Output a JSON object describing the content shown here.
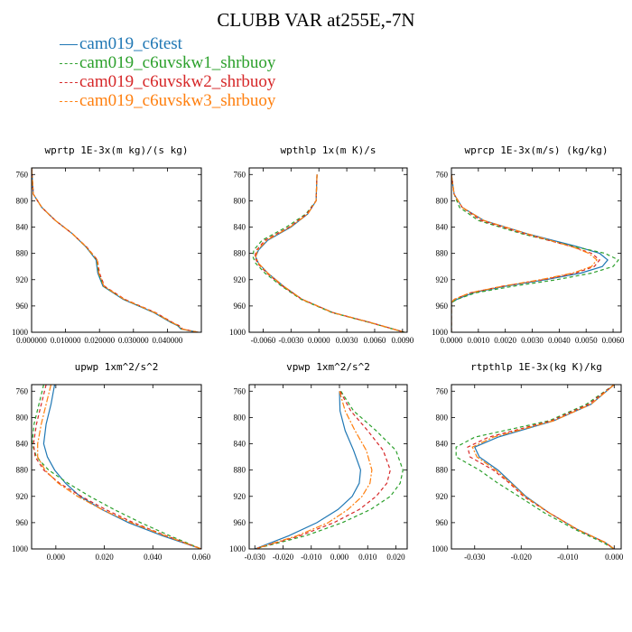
{
  "title": "CLUBB VAR at255E,-7N",
  "legend": [
    {
      "name": "cam019_c6test",
      "color": "#1f77b4",
      "dash": "solid"
    },
    {
      "name": "cam019_c6uvskw1_shrbuoy",
      "color": "#2ca02c",
      "dash": "dashed"
    },
    {
      "name": "cam019_c6uvskw2_shrbuoy",
      "color": "#d62728",
      "dash": "dashed"
    },
    {
      "name": "cam019_c6uvskw3_shrbuoy",
      "color": "#ff7f0e",
      "dash": "dashdot"
    }
  ],
  "chart_data": [
    {
      "type": "line",
      "title": "wprtp  1E-3x(m kg)/(s kg)",
      "xlim": [
        0,
        0.05
      ],
      "ylim": [
        1000,
        750
      ],
      "xticks": [
        0,
        0.01,
        0.02,
        0.03,
        0.04
      ],
      "xtick_labels": [
        "0.000000",
        "0.010000",
        "0.020000",
        "0.030000",
        "0.040000"
      ],
      "yticks": [
        760,
        800,
        840,
        880,
        920,
        960,
        1000
      ],
      "y": [
        750,
        790,
        810,
        830,
        850,
        870,
        890,
        910,
        930,
        950,
        970,
        985,
        990,
        995,
        1000
      ],
      "series": [
        {
          "name": "cam019_c6test",
          "values": [
            0,
            0.0005,
            0.003,
            0.007,
            0.012,
            0.016,
            0.019,
            0.0195,
            0.021,
            0.027,
            0.036,
            0.041,
            0.043,
            0.044,
            0.049
          ]
        },
        {
          "name": "cam019_c6uvskw1_shrbuoy",
          "values": [
            0,
            0.0005,
            0.003,
            0.007,
            0.012,
            0.016,
            0.0192,
            0.0197,
            0.0212,
            0.0272,
            0.0362,
            0.0412,
            0.0432,
            0.0442,
            0.049
          ]
        },
        {
          "name": "cam019_c6uvskw2_shrbuoy",
          "values": [
            0,
            0.0005,
            0.003,
            0.007,
            0.012,
            0.0162,
            0.0194,
            0.02,
            0.0215,
            0.0275,
            0.0365,
            0.0415,
            0.0435,
            0.0445,
            0.049
          ]
        },
        {
          "name": "cam019_c6uvskw3_shrbuoy",
          "values": [
            0,
            0.0005,
            0.003,
            0.007,
            0.012,
            0.0161,
            0.0193,
            0.0198,
            0.0213,
            0.0273,
            0.0363,
            0.0413,
            0.0433,
            0.0443,
            0.049
          ]
        }
      ]
    },
    {
      "type": "line",
      "title": "wpthlp  1x(m K)/s",
      "xlim": [
        -0.0075,
        0.0095
      ],
      "ylim": [
        1000,
        750
      ],
      "xticks": [
        -0.006,
        -0.003,
        0,
        0.003,
        0.006,
        0.009
      ],
      "xtick_labels": [
        "-0.0060",
        "-0.0030",
        "0.0000",
        "0.0030",
        "0.0060",
        "0.0090"
      ],
      "yticks": [
        760,
        800,
        840,
        880,
        920,
        960,
        1000
      ],
      "y": [
        760,
        800,
        820,
        840,
        860,
        875,
        885,
        895,
        910,
        930,
        950,
        970,
        985,
        1000
      ],
      "series": [
        {
          "name": "cam019_c6test",
          "values": [
            -0.0002,
            -0.0003,
            -0.0012,
            -0.003,
            -0.0055,
            -0.0065,
            -0.0068,
            -0.0065,
            -0.0055,
            -0.0038,
            -0.0018,
            0.0015,
            0.0055,
            0.0092
          ]
        },
        {
          "name": "cam019_c6uvskw1_shrbuoy",
          "values": [
            -0.0002,
            -0.0003,
            -0.0014,
            -0.0035,
            -0.0061,
            -0.007,
            -0.0071,
            -0.0068,
            -0.0058,
            -0.004,
            -0.0019,
            0.0014,
            0.0054,
            0.0092
          ]
        },
        {
          "name": "cam019_c6uvskw2_shrbuoy",
          "values": [
            -0.0002,
            -0.0003,
            -0.0013,
            -0.0032,
            -0.0058,
            -0.0067,
            -0.0069,
            -0.0066,
            -0.0056,
            -0.0039,
            -0.0018,
            0.0015,
            0.0055,
            0.0092
          ]
        },
        {
          "name": "cam019_c6uvskw3_shrbuoy",
          "values": [
            -0.0002,
            -0.0003,
            -0.0012,
            -0.0031,
            -0.0056,
            -0.0066,
            -0.0068,
            -0.0065,
            -0.0055,
            -0.0038,
            -0.0018,
            0.0015,
            0.0055,
            0.0092
          ]
        }
      ]
    },
    {
      "type": "line",
      "title": "wprcp  1E-3x(m/s) (kg/kg)",
      "xlim": [
        0,
        0.0063
      ],
      "ylim": [
        1000,
        750
      ],
      "xticks": [
        0,
        0.001,
        0.002,
        0.003,
        0.004,
        0.005,
        0.006
      ],
      "xtick_labels": [
        "0.0000",
        "0.0010",
        "0.0020",
        "0.0030",
        "0.0040",
        "0.0050",
        "0.0060"
      ],
      "yticks": [
        760,
        800,
        840,
        880,
        920,
        960,
        1000
      ],
      "y": [
        760,
        790,
        810,
        830,
        850,
        870,
        880,
        890,
        900,
        910,
        920,
        930,
        940,
        950,
        955,
        1000
      ],
      "series": [
        {
          "name": "cam019_c6test",
          "values": [
            0,
            0.0001,
            0.0004,
            0.0012,
            0.0028,
            0.0047,
            0.0055,
            0.0058,
            0.0056,
            0.0048,
            0.0035,
            0.002,
            0.0008,
            0.0002,
            0,
            0
          ]
        },
        {
          "name": "cam019_c6uvskw1_shrbuoy",
          "values": [
            0,
            0.0001,
            0.0003,
            0.001,
            0.0026,
            0.0046,
            0.0057,
            0.0062,
            0.006,
            0.0052,
            0.0039,
            0.0023,
            0.0009,
            0.0002,
            0,
            0
          ]
        },
        {
          "name": "cam019_c6uvskw2_shrbuoy",
          "values": [
            0,
            0.0001,
            0.0004,
            0.0011,
            0.0027,
            0.0045,
            0.0052,
            0.0055,
            0.0053,
            0.0046,
            0.0034,
            0.0019,
            0.0007,
            0.0001,
            0,
            0
          ]
        },
        {
          "name": "cam019_c6uvskw3_shrbuoy",
          "values": [
            0,
            0.0001,
            0.0004,
            0.0012,
            0.0028,
            0.0045,
            0.0051,
            0.0054,
            0.0052,
            0.0045,
            0.0033,
            0.0019,
            0.0007,
            0.0001,
            0,
            0
          ]
        }
      ]
    },
    {
      "type": "line",
      "title": "upwp  1xm^2/s^2",
      "xlim": [
        -0.01,
        0.06
      ],
      "ylim": [
        1000,
        750
      ],
      "xticks": [
        0,
        0.02,
        0.04,
        0.06
      ],
      "xtick_labels": [
        "0.000",
        "0.020",
        "0.040",
        "0.060"
      ],
      "yticks": [
        760,
        800,
        840,
        880,
        920,
        960,
        1000
      ],
      "y": [
        750,
        780,
        810,
        840,
        860,
        880,
        900,
        920,
        940,
        960,
        980,
        1000
      ],
      "series": [
        {
          "name": "cam019_c6test",
          "values": [
            -0.0005,
            -0.002,
            -0.004,
            -0.005,
            -0.0035,
            -0.0005,
            0.004,
            0.01,
            0.019,
            0.03,
            0.044,
            0.06
          ]
        },
        {
          "name": "cam019_c6uvskw1_shrbuoy",
          "values": [
            -0.005,
            -0.007,
            -0.009,
            -0.0098,
            -0.008,
            -0.003,
            0.005,
            0.014,
            0.024,
            0.035,
            0.047,
            0.06
          ]
        },
        {
          "name": "cam019_c6uvskw2_shrbuoy",
          "values": [
            -0.004,
            -0.006,
            -0.008,
            -0.0092,
            -0.0085,
            -0.005,
            0.0015,
            0.0105,
            0.0205,
            0.032,
            0.0455,
            0.06
          ]
        },
        {
          "name": "cam019_c6uvskw3_shrbuoy",
          "values": [
            -0.002,
            -0.004,
            -0.006,
            -0.0075,
            -0.0075,
            -0.0045,
            0.001,
            0.009,
            0.019,
            0.031,
            0.045,
            0.06
          ]
        }
      ]
    },
    {
      "type": "line",
      "title": "vpwp  1xm^2/s^2",
      "xlim": [
        -0.032,
        0.024
      ],
      "ylim": [
        1000,
        750
      ],
      "xticks": [
        -0.03,
        -0.02,
        -0.01,
        0,
        0.01,
        0.02
      ],
      "xtick_labels": [
        "-0.030",
        "-0.020",
        "-0.010",
        "0.000",
        "0.010",
        "0.020"
      ],
      "yticks": [
        760,
        800,
        840,
        880,
        920,
        960,
        1000
      ],
      "y": [
        760,
        790,
        820,
        850,
        880,
        900,
        920,
        940,
        960,
        980,
        1000
      ],
      "series": [
        {
          "name": "cam019_c6test",
          "values": [
            0,
            0.0002,
            0.002,
            0.005,
            0.0075,
            0.007,
            0.0045,
            -0.0005,
            -0.008,
            -0.018,
            -0.03
          ]
        },
        {
          "name": "cam019_c6uvskw1_shrbuoy",
          "values": [
            0.0005,
            0.005,
            0.013,
            0.02,
            0.0225,
            0.0215,
            0.018,
            0.011,
            0.001,
            -0.012,
            -0.03
          ]
        },
        {
          "name": "cam019_c6uvskw2_shrbuoy",
          "values": [
            0.0002,
            0.004,
            0.01,
            0.0155,
            0.018,
            0.0168,
            0.013,
            0.007,
            -0.002,
            -0.014,
            -0.03
          ]
        },
        {
          "name": "cam019_c6uvskw3_shrbuoy",
          "values": [
            0,
            0.002,
            0.0055,
            0.0095,
            0.0115,
            0.0108,
            0.008,
            0.003,
            -0.004,
            -0.015,
            -0.03
          ]
        }
      ]
    },
    {
      "type": "line",
      "title": "rtpthlp  1E-3x(kg K)/kg",
      "xlim": [
        -0.035,
        0.0015
      ],
      "ylim": [
        1000,
        750
      ],
      "xticks": [
        -0.03,
        -0.02,
        -0.01,
        0
      ],
      "xtick_labels": [
        "-0.030",
        "-0.020",
        "-0.010",
        "0.000"
      ],
      "yticks": [
        760,
        800,
        840,
        880,
        920,
        960,
        1000
      ],
      "y": [
        750,
        780,
        805,
        830,
        845,
        860,
        880,
        900,
        920,
        945,
        970,
        990,
        1000
      ],
      "series": [
        {
          "name": "cam019_c6test",
          "values": [
            0,
            -0.005,
            -0.013,
            -0.025,
            -0.03,
            -0.029,
            -0.025,
            -0.022,
            -0.019,
            -0.014,
            -0.008,
            -0.002,
            0
          ]
        },
        {
          "name": "cam019_c6uvskw1_shrbuoy",
          "values": [
            0,
            -0.006,
            -0.014,
            -0.03,
            -0.034,
            -0.034,
            -0.029,
            -0.025,
            -0.0205,
            -0.015,
            -0.0085,
            -0.0025,
            0
          ]
        },
        {
          "name": "cam019_c6uvskw2_shrbuoy",
          "values": [
            0,
            -0.0055,
            -0.0135,
            -0.027,
            -0.0315,
            -0.031,
            -0.026,
            -0.0225,
            -0.0195,
            -0.014,
            -0.008,
            -0.002,
            0
          ]
        },
        {
          "name": "cam019_c6uvskw3_shrbuoy",
          "values": [
            0,
            -0.005,
            -0.013,
            -0.026,
            -0.0305,
            -0.0295,
            -0.0255,
            -0.0222,
            -0.0192,
            -0.014,
            -0.008,
            -0.002,
            0
          ]
        }
      ]
    }
  ]
}
